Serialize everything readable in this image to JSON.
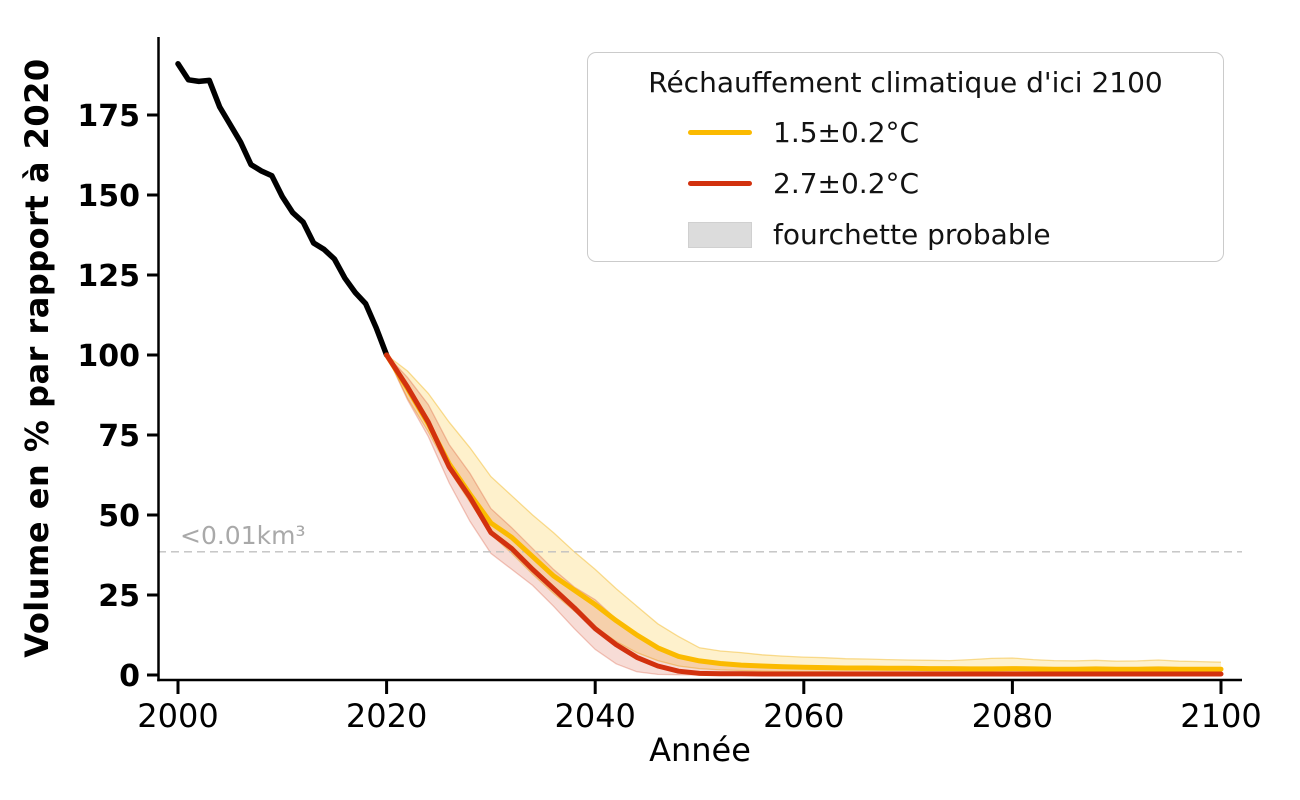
{
  "chart_data": {
    "type": "line",
    "title": "",
    "xlabel": "Année",
    "ylabel": "Volume en % par rapport à 2020",
    "xlim": [
      1998,
      2102
    ],
    "ylim": [
      -1.5,
      199
    ],
    "x_ticks": [
      2000,
      2020,
      2040,
      2060,
      2080,
      2100
    ],
    "y_ticks": [
      0,
      25,
      50,
      75,
      100,
      125,
      150,
      175
    ],
    "grid": false,
    "legend": {
      "title": "Réchauffement climatique d'ici 2100",
      "position": "upper right",
      "entries": [
        {
          "label": "1.5±0.2°C",
          "type": "line",
          "color": "#FBBA00"
        },
        {
          "label": "2.7±0.2°C",
          "type": "line",
          "color": "#D2310E"
        },
        {
          "label": "fourchette probable",
          "type": "patch",
          "color": "#DCDCDC"
        }
      ]
    },
    "threshold_line": {
      "value": 38.5,
      "label": "<0.01km³",
      "style": "dashed",
      "color": "#c0c0c0",
      "label_color": "#a9a9a9"
    },
    "series": [
      {
        "name": "historique",
        "color": "#000000",
        "x": [
          2000,
          2001,
          2002,
          2003,
          2004,
          2005,
          2006,
          2007,
          2008,
          2009,
          2010,
          2011,
          2012,
          2013,
          2014,
          2015,
          2016,
          2017,
          2018,
          2019,
          2020
        ],
        "y": [
          191,
          186,
          185.5,
          185.8,
          177.5,
          172,
          166.5,
          159.5,
          157.5,
          156,
          149.5,
          144.5,
          141.5,
          135,
          133,
          130,
          124,
          119.5,
          116,
          108.5,
          100
        ]
      },
      {
        "name": "1.5±0.2°C",
        "color": "#FBBA00",
        "x": [
          2020,
          2022,
          2024,
          2026,
          2028,
          2030,
          2032,
          2034,
          2036,
          2038,
          2040,
          2042,
          2044,
          2046,
          2048,
          2050,
          2052,
          2054,
          2056,
          2058,
          2060,
          2062,
          2064,
          2066,
          2068,
          2070,
          2072,
          2074,
          2076,
          2078,
          2080,
          2082,
          2084,
          2086,
          2088,
          2090,
          2092,
          2094,
          2096,
          2098,
          2100
        ],
        "y": [
          100,
          89.5,
          78.5,
          66,
          56.5,
          47.5,
          43,
          37,
          31,
          26.5,
          22,
          17,
          12.5,
          8.5,
          5.8,
          4.4,
          3.6,
          3.1,
          2.8,
          2.6,
          2.4,
          2.3,
          2.2,
          2.2,
          2.1,
          2.1,
          2.0,
          2.0,
          1.9,
          1.9,
          2.0,
          1.9,
          1.8,
          1.8,
          1.9,
          1.8,
          1.8,
          1.9,
          1.8,
          1.8,
          1.8
        ],
        "band": {
          "label": "fourchette probable",
          "fill": "rgba(251,186,0,0.20)",
          "edge": "rgba(240,172,0,0.40)",
          "upper": [
            100,
            95,
            88,
            79,
            71,
            62,
            56,
            50,
            44.5,
            38.5,
            33,
            27,
            21.5,
            16,
            12,
            8.5,
            7.5,
            7,
            6.3,
            5.9,
            5.6,
            5.4,
            5.1,
            5.0,
            4.8,
            4.7,
            4.6,
            4.5,
            4.8,
            5.2,
            5.3,
            4.8,
            4.5,
            4.4,
            4.6,
            4.3,
            4.4,
            4.7,
            4.3,
            4.2,
            4.0
          ],
          "lower": [
            100,
            86.5,
            76,
            64,
            54,
            44,
            38,
            31.5,
            25.5,
            20,
            15,
            10.5,
            7,
            4.5,
            2.8,
            2,
            1.6,
            1.4,
            1.2,
            1.1,
            1.0,
            1.0,
            0.9,
            0.9,
            0.9,
            0.9,
            0.9,
            0.8,
            0.8,
            0.8,
            0.9,
            0.8,
            0.8,
            0.8,
            0.8,
            0.8,
            0.8,
            0.8,
            0.8,
            0.8,
            0.8
          ]
        }
      },
      {
        "name": "2.7±0.2°C",
        "color": "#D2310E",
        "x": [
          2020,
          2022,
          2024,
          2026,
          2028,
          2030,
          2032,
          2034,
          2036,
          2038,
          2040,
          2042,
          2044,
          2046,
          2048,
          2050,
          2052,
          2054,
          2056,
          2058,
          2060,
          2062,
          2064,
          2066,
          2068,
          2070,
          2072,
          2074,
          2076,
          2078,
          2080,
          2082,
          2084,
          2086,
          2088,
          2090,
          2092,
          2094,
          2096,
          2098,
          2100
        ],
        "y": [
          100,
          90,
          79,
          65,
          55.5,
          44.5,
          39.5,
          33,
          27,
          21,
          14.5,
          9.5,
          5.5,
          2.8,
          1.2,
          0.5,
          0.4,
          0.4,
          0.3,
          0.3,
          0.3,
          0.3,
          0.3,
          0.3,
          0.3,
          0.3,
          0.3,
          0.3,
          0.3,
          0.3,
          0.3,
          0.3,
          0.3,
          0.3,
          0.3,
          0.3,
          0.3,
          0.3,
          0.3,
          0.3,
          0.3
        ],
        "band": {
          "label": "fourchette probable",
          "fill": "rgba(210,49,14,0.17)",
          "edge": "rgba(210,49,14,0.26)",
          "upper": [
            100,
            93,
            84.5,
            72,
            63,
            52,
            46,
            39.5,
            33,
            27.5,
            23.5,
            17.5,
            12.5,
            8.5,
            5.5,
            4,
            3.2,
            2.8,
            2.6,
            2.4,
            2.3,
            2.3,
            2.2,
            2.2,
            2.2,
            2.2,
            2.1,
            2.1,
            2.1,
            2.1,
            2.1,
            2.0,
            2.0,
            2.0,
            2.0,
            2.0,
            2.0,
            2.0,
            2.0,
            2.0,
            2.0
          ],
          "lower": [
            100,
            86,
            74.5,
            60,
            48,
            38,
            33,
            28,
            21.5,
            14.5,
            8,
            3.5,
            1,
            0.2,
            0.1,
            0,
            0,
            0,
            0,
            0,
            0,
            0,
            0,
            0,
            0,
            0,
            0,
            0,
            0,
            0,
            0,
            0,
            0,
            0,
            0,
            0,
            0,
            0,
            0,
            0,
            0
          ]
        }
      }
    ]
  }
}
